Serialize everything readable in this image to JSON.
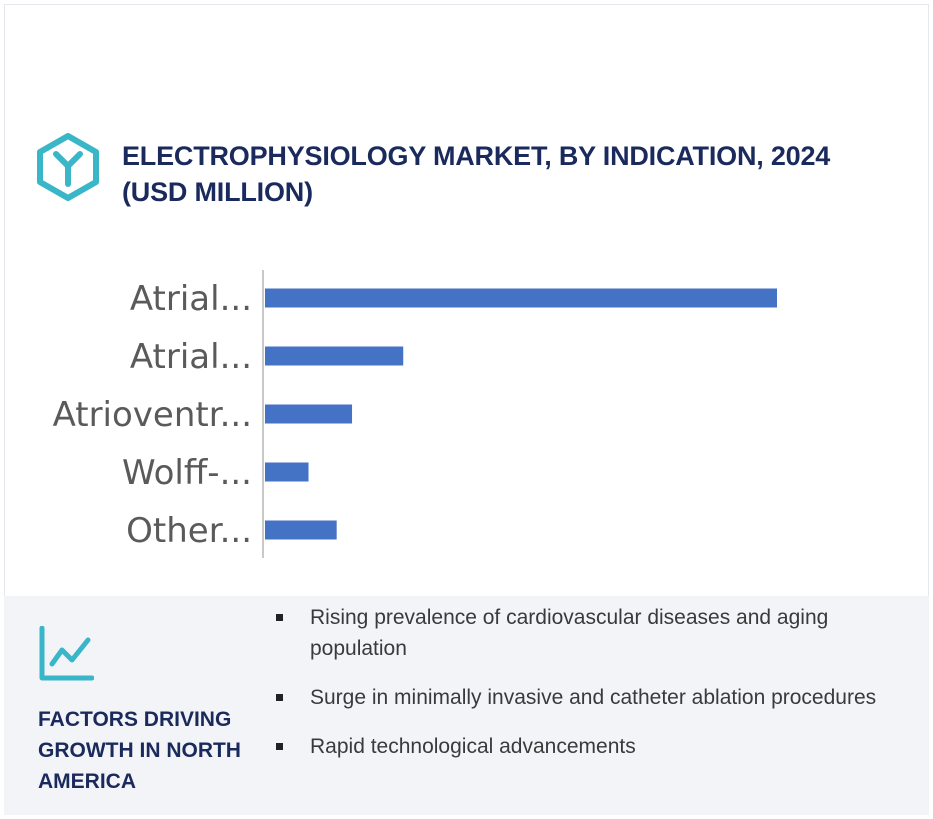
{
  "header": {
    "title": "ELECTROPHYSIOLOGY MARKET, BY INDICATION, 2024 (USD MILLION)",
    "logo_icon": "hexagon-y-logo-icon",
    "accent_color": "#3ab6c9"
  },
  "chart_data": {
    "type": "bar",
    "orientation": "horizontal",
    "title": "ELECTROPHYSIOLOGY MARKET, BY INDICATION, 2024 (USD MILLION)",
    "categories": [
      "Atrial...",
      "Atrial...",
      "Atrioventr...",
      "Wolff-...",
      "Other..."
    ],
    "values": [
      100,
      27,
      17,
      8.5,
      14
    ],
    "xlim": [
      0,
      100
    ],
    "bar_color": "#4472c4",
    "grid": false,
    "legend": "none"
  },
  "factors": {
    "title": "FACTORS DRIVING GROWTH IN NORTH AMERICA",
    "icon": "line-chart-icon",
    "bullets": [
      "Rising prevalence of cardiovascular diseases and aging population",
      "Surge in minimally invasive and catheter ablation procedures",
      "Rapid technological advancements"
    ]
  }
}
